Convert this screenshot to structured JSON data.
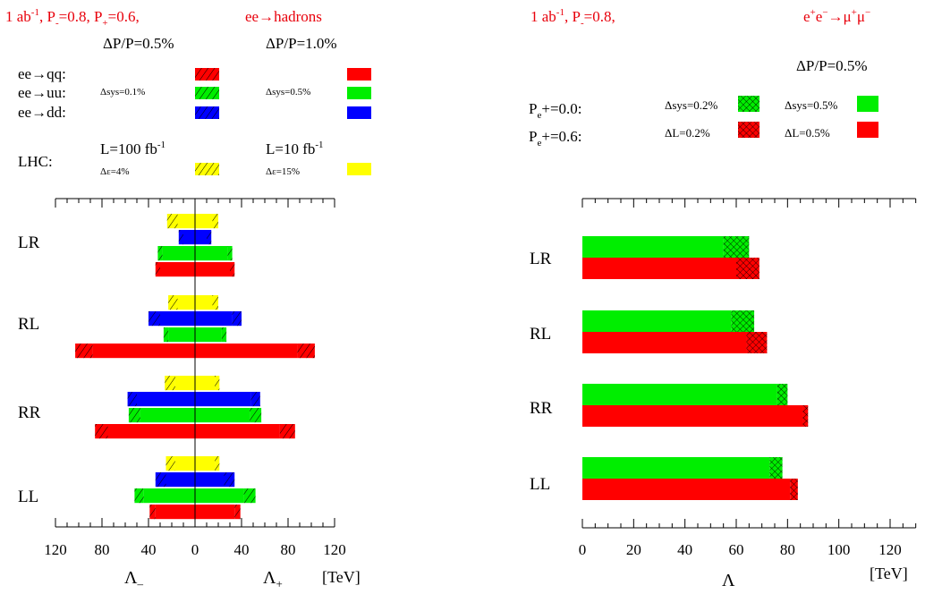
{
  "chart_data": [
    {
      "type": "bar",
      "orientation": "horizontal",
      "header": {
        "left_parts": [
          "1 ab",
          "-1",
          ", P",
          "-",
          "=0.8, P",
          "+",
          "=0.6,"
        ],
        "right": "ee→hadrons"
      },
      "column_titles": [
        "ΔP/P=0.5%",
        "ΔP/P=1.0%"
      ],
      "legend": {
        "rows": [
          {
            "label": "ee→qq:",
            "color": "#ff0000",
            "note_a": "",
            "note_b": ""
          },
          {
            "label": "ee→uu:",
            "color": "#00ee00",
            "note_a": "Δsys=0.1%",
            "note_b": "Δsys=0.5%"
          },
          {
            "label": "ee→dd:",
            "color": "#0000ff",
            "note_a": "",
            "note_b": ""
          }
        ],
        "lhc": {
          "label": "LHC:",
          "color": "#ffff00",
          "title_a": "L=100 fb",
          "title_a_sup": "-1",
          "title_b": "L=10 fb",
          "title_b_sup": "-1",
          "note_a": "Δε=4%",
          "note_b": "Δε=15%"
        }
      },
      "categories": [
        "LR",
        "RL",
        "RR",
        "LL"
      ],
      "series": [
        {
          "name": "LHC",
          "color": "#ffff00",
          "values": [
            [
              -24,
              -15,
              15,
              20
            ],
            [
              -23,
              -15,
              15,
              20
            ],
            [
              -26,
              -17,
              17,
              21
            ],
            [
              -25,
              -17,
              17,
              21
            ]
          ]
        },
        {
          "name": "ee→dd",
          "color": "#0000ff",
          "values": [
            [
              -14,
              -10,
              10,
              14
            ],
            [
              -40,
              -30,
              32,
              40
            ],
            [
              -58,
              -50,
              48,
              56
            ],
            [
              -34,
              -25,
              25,
              34
            ]
          ]
        },
        {
          "name": "ee→uu",
          "color": "#00ee00",
          "values": [
            [
              -32,
              -28,
              28,
              32
            ],
            [
              -27,
              -23,
              23,
              27
            ],
            [
              -57,
              -47,
              47,
              57
            ],
            [
              -52,
              -44,
              42,
              52
            ]
          ]
        },
        {
          "name": "ee→qq",
          "color": "#ff0000",
          "values": [
            [
              -34,
              -30,
              30,
              34
            ],
            [
              -103,
              -88,
              88,
              103
            ],
            [
              -86,
              -75,
              73,
              86
            ],
            [
              -39,
              -34,
              34,
              39
            ]
          ]
        }
      ],
      "xticks": [
        -120,
        -80,
        -40,
        0,
        40,
        80,
        120
      ],
      "xticklabels": [
        "120",
        "80",
        "40",
        "0",
        "40",
        "80",
        "120"
      ],
      "xlim": [
        -120,
        120
      ],
      "xlabel_left": "Λ",
      "xlabel_left_sub": "–",
      "xlabel_right": "Λ",
      "xlabel_right_sub": "+",
      "unit": "[TeV]"
    },
    {
      "type": "bar",
      "orientation": "horizontal",
      "header": {
        "left_parts": [
          "1 ab",
          "-1",
          ",  P",
          "-",
          "=0.8,"
        ],
        "right_parts": [
          "e",
          "+",
          "e",
          "−",
          "→μ",
          "+",
          "μ",
          "−"
        ]
      },
      "column_title": "ΔP/P=0.5%",
      "legend": {
        "rows": [
          {
            "label": "P",
            "label_sub": "e",
            "label_rest": "+=0.0:",
            "color": "#00ee00",
            "note_a": "Δsys=0.2%",
            "note_b": "Δsys=0.5%"
          },
          {
            "label": "P",
            "label_sub": "e",
            "label_rest": "+=0.6:",
            "color": "#ff0000",
            "note_a": "ΔL=0.2%",
            "note_b": "ΔL=0.5%"
          }
        ]
      },
      "categories": [
        "LR",
        "RL",
        "RR",
        "LL"
      ],
      "series": [
        {
          "name": "P_e+=0.0",
          "color": "#00ee00",
          "values": [
            [
              55,
              65
            ],
            [
              58,
              67
            ],
            [
              76,
              80
            ],
            [
              73,
              78
            ]
          ]
        },
        {
          "name": "P_e+=0.6",
          "color": "#ff0000",
          "values": [
            [
              60,
              69
            ],
            [
              64,
              72
            ],
            [
              86,
              88
            ],
            [
              81,
              84
            ]
          ]
        }
      ],
      "xticks": [
        0,
        20,
        40,
        60,
        80,
        100,
        120
      ],
      "xticklabels": [
        "0",
        "20",
        "40",
        "60",
        "80",
        "100",
        "120"
      ],
      "xlim": [
        0,
        130
      ],
      "xlabel": "Λ",
      "unit": "[TeV]"
    }
  ]
}
